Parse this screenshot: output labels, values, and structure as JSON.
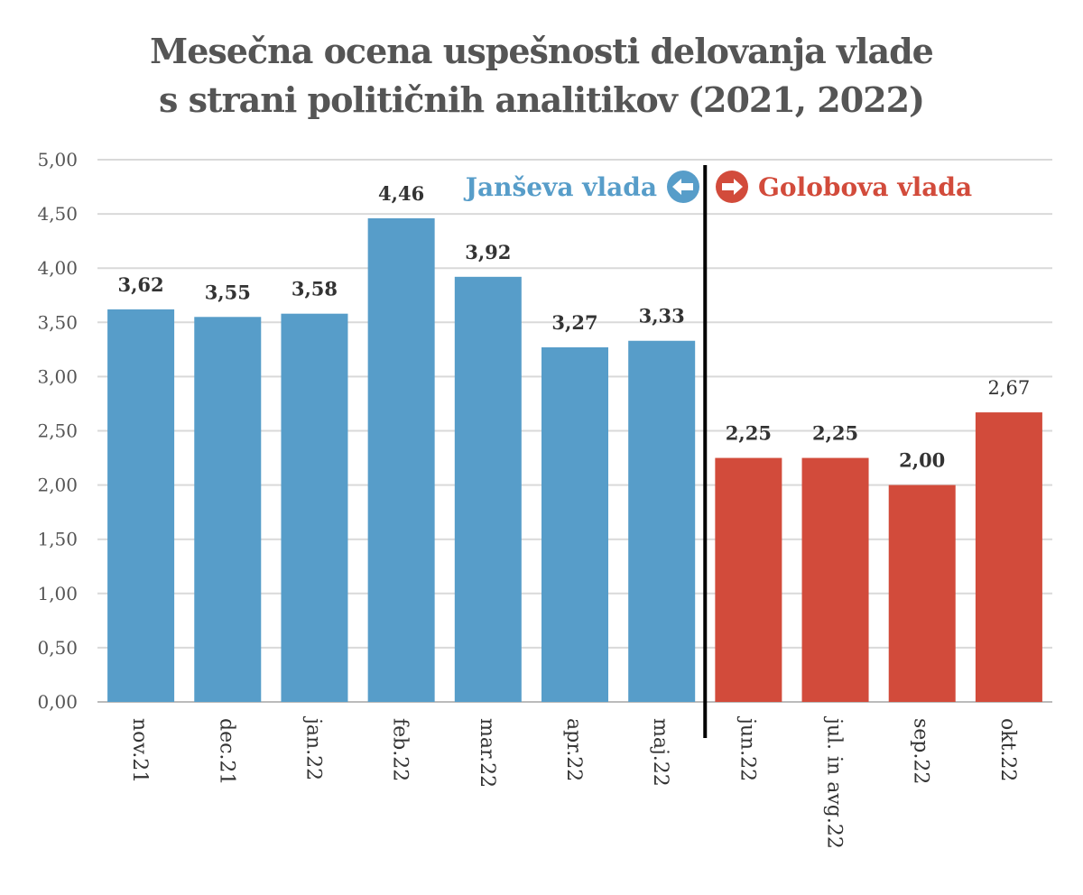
{
  "title_lines": [
    "Mesečna ocena uspešnosti delovanja vlade",
    "s strani političnih analitikov (2021, 2022)"
  ],
  "legend": {
    "left": {
      "label": "Janševa vlada",
      "icon": "arrow-left-circle-icon",
      "color": "#579dc9"
    },
    "right": {
      "label": "Golobova vlada",
      "icon": "arrow-right-circle-icon",
      "color": "#d24b3b"
    }
  },
  "chart_data": {
    "type": "bar",
    "title": "Mesečna ocena uspešnosti delovanja vlade s strani političnih analitikov (2021, 2022)",
    "xlabel": "",
    "ylabel": "",
    "ylim": [
      0,
      5
    ],
    "yticks": [
      0,
      0.5,
      1,
      1.5,
      2,
      2.5,
      3,
      3.5,
      4,
      4.5,
      5
    ],
    "ytick_labels": [
      "0,00",
      "0,50",
      "1,00",
      "1,50",
      "2,00",
      "2,50",
      "3,00",
      "3,50",
      "4,00",
      "4,50",
      "5,00"
    ],
    "grid": true,
    "categories": [
      "nov.21",
      "dec.21",
      "jan.22",
      "feb.22",
      "mar.22",
      "apr.22",
      "maj.22",
      "jun.22",
      "jul. in avg.22",
      "sep.22",
      "okt.22"
    ],
    "values": [
      3.62,
      3.55,
      3.58,
      4.46,
      3.92,
      3.27,
      3.33,
      2.25,
      2.25,
      2.0,
      2.67
    ],
    "value_labels": [
      "3,62",
      "3,55",
      "3,58",
      "4,46",
      "3,92",
      "3,27",
      "3,33",
      "2,25",
      "2,25",
      "2,00",
      "2,67"
    ],
    "groups": [
      "Janševa vlada",
      "Janševa vlada",
      "Janševa vlada",
      "Janševa vlada",
      "Janševa vlada",
      "Janševa vlada",
      "Janševa vlada",
      "Golobova vlada",
      "Golobova vlada",
      "Golobova vlada",
      "Golobova vlada"
    ],
    "colors": {
      "Janševa vlada": "#579dc9",
      "Golobova vlada": "#d24b3b"
    },
    "divider_after_category": "maj.22"
  }
}
